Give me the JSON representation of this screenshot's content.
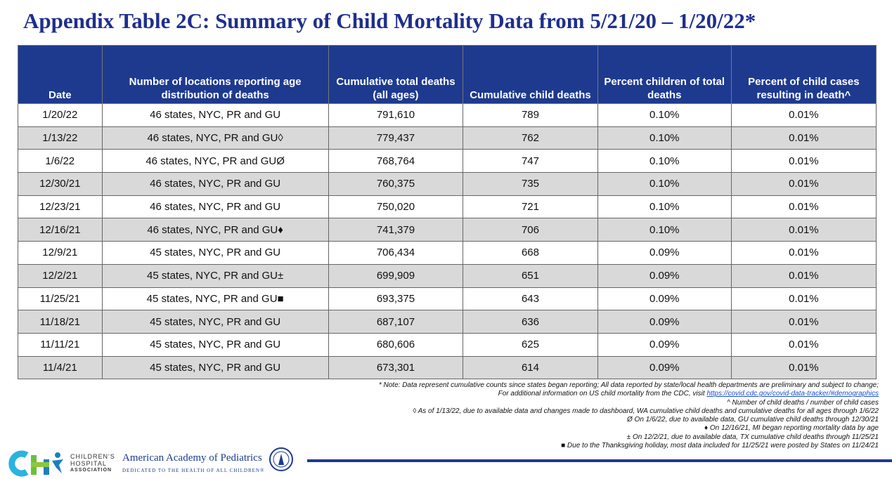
{
  "title": "Appendix Table 2C: Summary of Child Mortality Data from 5/21/20 – 1/20/22*",
  "table": {
    "header": [
      "Date",
      "Number of locations reporting age distribution of deaths",
      "Cumulative total deaths (all ages)",
      "Cumulative child deaths",
      "Percent children of total deaths",
      "Percent of child cases resulting in death^"
    ],
    "rows": [
      [
        "1/20/22",
        "46 states, NYC, PR and GU",
        "791,610",
        "789",
        "0.10%",
        "0.01%"
      ],
      [
        "1/13/22",
        "46 states, NYC, PR and GU◊",
        "779,437",
        "762",
        "0.10%",
        "0.01%"
      ],
      [
        "1/6/22",
        "46 states, NYC, PR and GUØ",
        "768,764",
        "747",
        "0.10%",
        "0.01%"
      ],
      [
        "12/30/21",
        "46 states, NYC, PR and GU",
        "760,375",
        "735",
        "0.10%",
        "0.01%"
      ],
      [
        "12/23/21",
        "46 states, NYC, PR and GU",
        "750,020",
        "721",
        "0.10%",
        "0.01%"
      ],
      [
        "12/16/21",
        "46 states, NYC, PR and GU♦",
        "741,379",
        "706",
        "0.10%",
        "0.01%"
      ],
      [
        "12/9/21",
        "45 states, NYC, PR and GU",
        "706,434",
        "668",
        "0.09%",
        "0.01%"
      ],
      [
        "12/2/21",
        "45 states, NYC, PR and GU±",
        "699,909",
        "651",
        "0.09%",
        "0.01%"
      ],
      [
        "11/25/21",
        "45 states, NYC, PR and GU■",
        "693,375",
        "643",
        "0.09%",
        "0.01%"
      ],
      [
        "11/18/21",
        "45 states, NYC, PR and GU",
        "687,107",
        "636",
        "0.09%",
        "0.01%"
      ],
      [
        "11/11/21",
        "45 states, NYC, PR and GU",
        "680,606",
        "625",
        "0.09%",
        "0.01%"
      ],
      [
        "11/4/21",
        "45 states, NYC, PR and GU",
        "673,301",
        "614",
        "0.09%",
        "0.01%"
      ]
    ]
  },
  "notes": {
    "note": "* Note: Data represent cumulative counts since states began reporting; All data reported by state/local health departments are preliminary and subject to change;",
    "cdc_text": "For additional information on US child mortality from the CDC, visit ",
    "cdc_link": "https://covid.cdc.gov/covid-data-tracker/#demographics",
    "lines": [
      "^ Number of child deaths / number of child cases",
      "◊ As of 1/13/22, due to available data and changes made to dashboard, WA cumulative child deaths and cumulative deaths for all ages through 1/6/22",
      "Ø On 1/6/22, due to available data, GU cumulative child deaths through 12/30/21",
      "♦ On 12/16/21, MI began reporting mortality data by age",
      "± On 12/2/21, due to available data, TX cumulative child deaths through 11/25/21",
      "■ Due to the Thanksgiving holiday, most data included for 11/25/21 were posted by States on 11/24/21"
    ]
  },
  "footer": {
    "cha": [
      "CHILDREN'S",
      "HOSPITAL",
      "ASSOCIATION"
    ],
    "aap": "American Academy of Pediatrics",
    "aap_tagline": "DEDICATED TO THE HEALTH OF ALL CHILDREN®"
  }
}
